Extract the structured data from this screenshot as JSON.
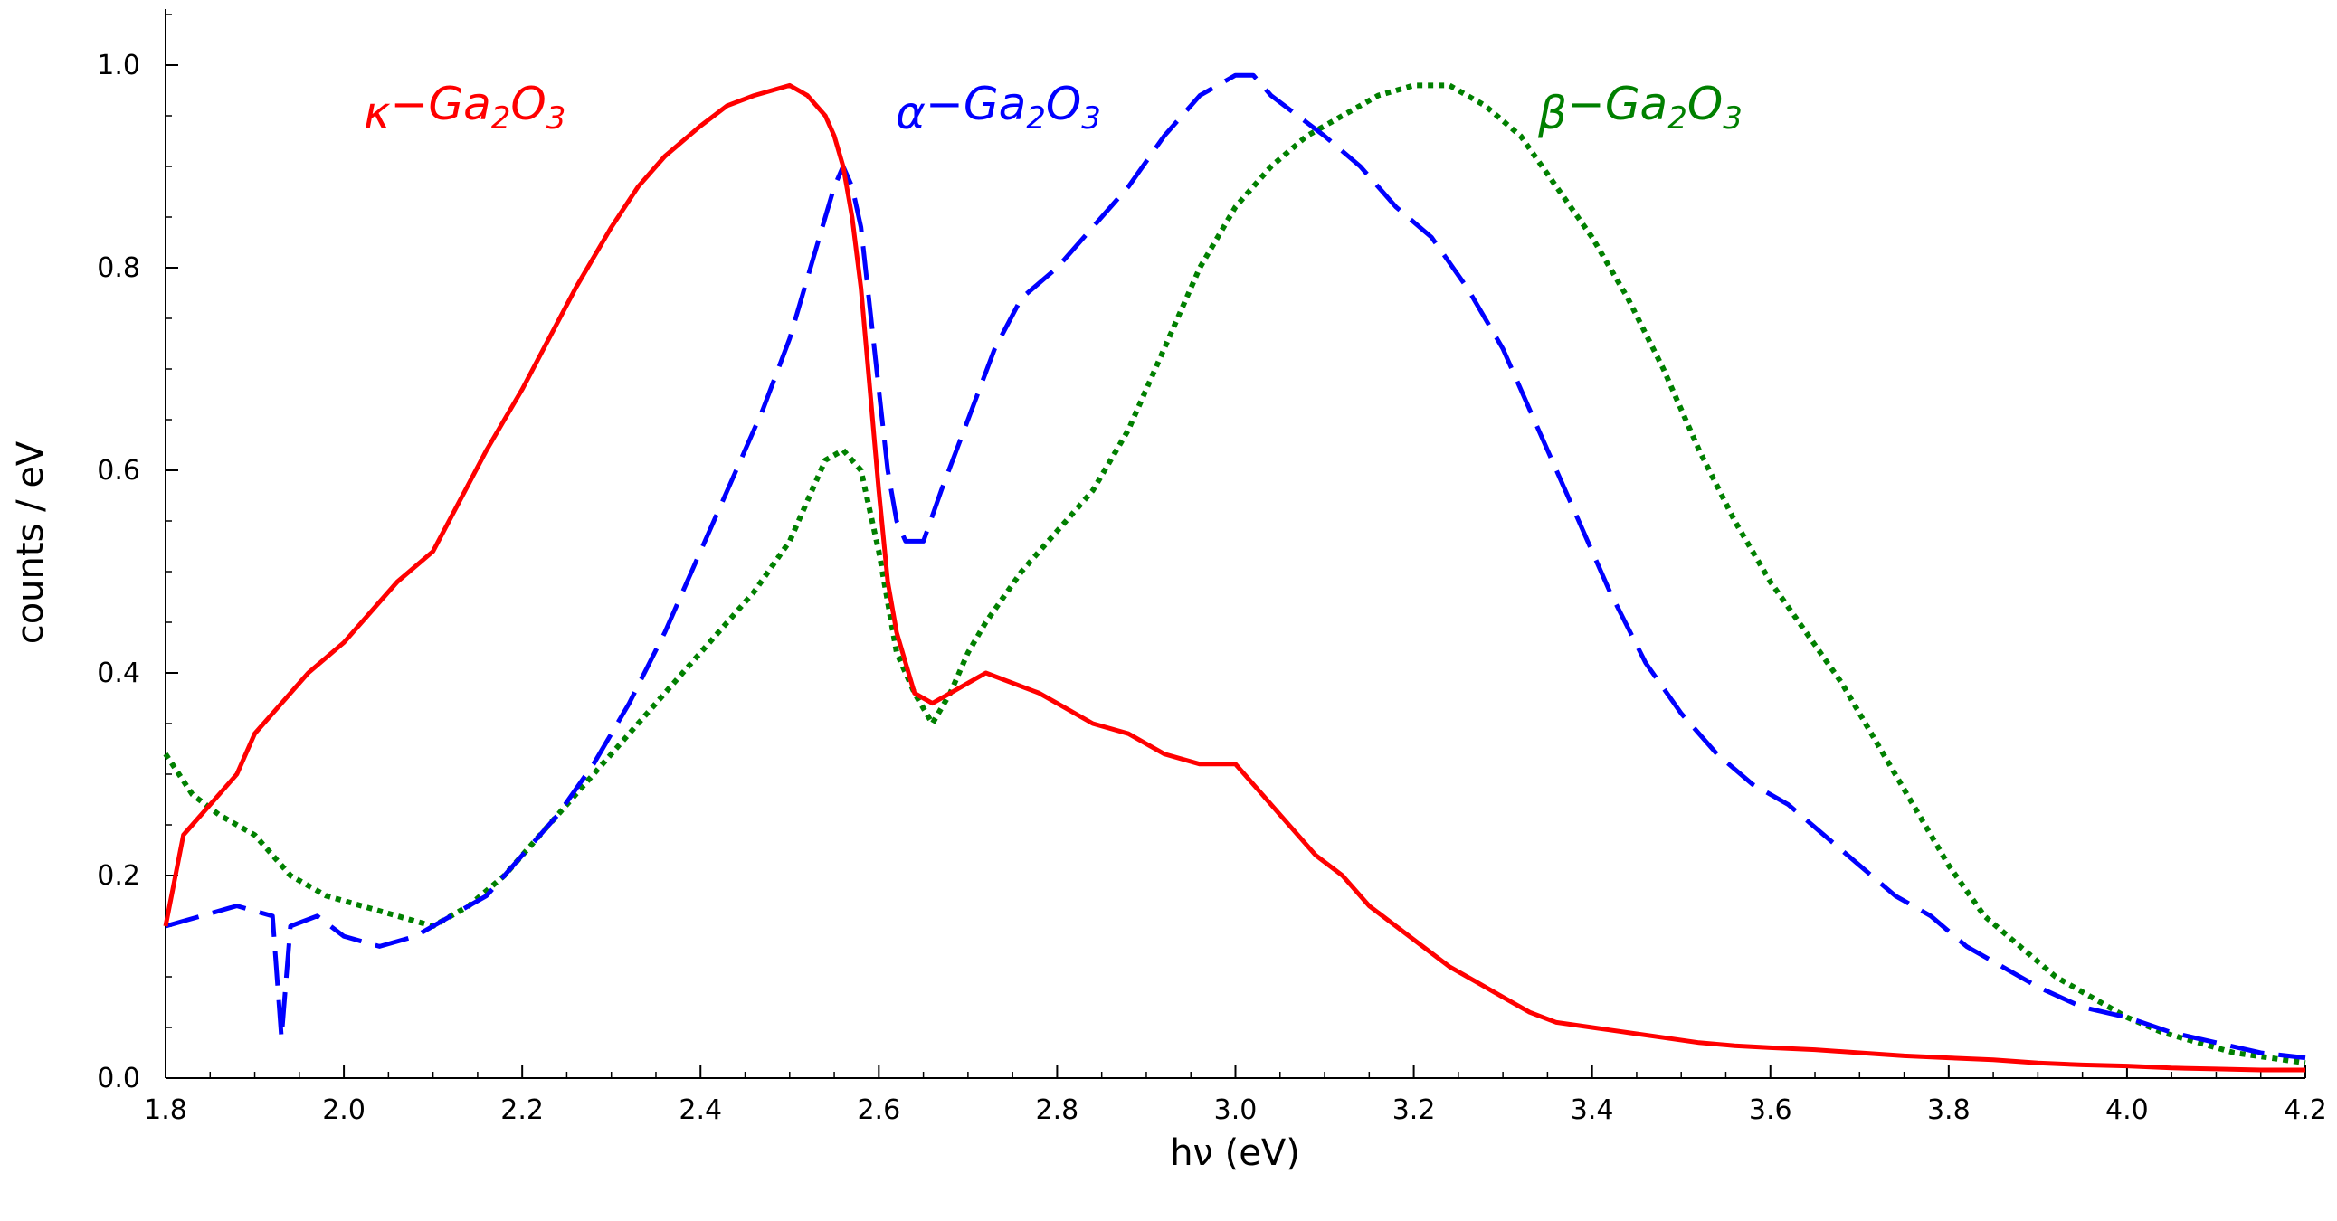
{
  "chart_data": {
    "type": "line",
    "xlabel": "hν (eV)",
    "ylabel": "counts / eV",
    "xlim": [
      1.8,
      4.2
    ],
    "ylim": [
      0.0,
      1.05
    ],
    "grid": false,
    "xticks": [
      "1.8",
      "2.0",
      "2.2",
      "2.4",
      "2.6",
      "2.8",
      "3.0",
      "3.2",
      "3.4",
      "3.6",
      "3.8",
      "4.0",
      "4.2"
    ],
    "yticks": [
      "0.0",
      "0.2",
      "0.4",
      "0.6",
      "0.8",
      "1.0"
    ],
    "series": [
      {
        "name": "κ−Ga2O3",
        "color": "#ff0000",
        "style": "solid",
        "label_parts": {
          "greek": "κ",
          "base": "−Ga",
          "sub1": "2",
          "mid": "O",
          "sub2": "3"
        },
        "x": [
          1.8,
          1.82,
          1.85,
          1.88,
          1.9,
          1.93,
          1.96,
          2.0,
          2.03,
          2.06,
          2.1,
          2.13,
          2.16,
          2.2,
          2.23,
          2.26,
          2.3,
          2.33,
          2.36,
          2.4,
          2.43,
          2.46,
          2.5,
          2.52,
          2.54,
          2.55,
          2.56,
          2.57,
          2.58,
          2.59,
          2.6,
          2.61,
          2.62,
          2.63,
          2.64,
          2.66,
          2.68,
          2.7,
          2.72,
          2.75,
          2.78,
          2.8,
          2.84,
          2.88,
          2.92,
          2.96,
          3.0,
          3.03,
          3.06,
          3.09,
          3.12,
          3.15,
          3.18,
          3.21,
          3.24,
          3.27,
          3.3,
          3.33,
          3.36,
          3.4,
          3.44,
          3.48,
          3.52,
          3.56,
          3.6,
          3.65,
          3.7,
          3.75,
          3.8,
          3.85,
          3.9,
          3.95,
          4.0,
          4.05,
          4.1,
          4.15,
          4.2
        ],
        "y": [
          0.15,
          0.24,
          0.27,
          0.3,
          0.34,
          0.37,
          0.4,
          0.43,
          0.46,
          0.49,
          0.52,
          0.57,
          0.62,
          0.68,
          0.73,
          0.78,
          0.84,
          0.88,
          0.91,
          0.94,
          0.96,
          0.97,
          0.98,
          0.97,
          0.95,
          0.93,
          0.9,
          0.85,
          0.78,
          0.68,
          0.58,
          0.49,
          0.44,
          0.41,
          0.38,
          0.37,
          0.38,
          0.39,
          0.4,
          0.39,
          0.38,
          0.37,
          0.35,
          0.34,
          0.32,
          0.31,
          0.31,
          0.28,
          0.25,
          0.22,
          0.2,
          0.17,
          0.15,
          0.13,
          0.11,
          0.095,
          0.08,
          0.065,
          0.055,
          0.05,
          0.045,
          0.04,
          0.035,
          0.032,
          0.03,
          0.028,
          0.025,
          0.022,
          0.02,
          0.018,
          0.015,
          0.013,
          0.012,
          0.01,
          0.009,
          0.008,
          0.008
        ]
      },
      {
        "name": "α−Ga2O3",
        "color": "#0000ff",
        "style": "dashed",
        "label_parts": {
          "greek": "α",
          "base": "−Ga",
          "sub1": "2",
          "mid": "O",
          "sub2": "3"
        },
        "x": [
          1.8,
          1.84,
          1.88,
          1.92,
          1.93,
          1.94,
          1.97,
          2.0,
          2.04,
          2.08,
          2.12,
          2.16,
          2.2,
          2.24,
          2.28,
          2.32,
          2.36,
          2.4,
          2.44,
          2.47,
          2.5,
          2.52,
          2.54,
          2.55,
          2.56,
          2.57,
          2.58,
          2.59,
          2.6,
          2.61,
          2.62,
          2.63,
          2.65,
          2.67,
          2.7,
          2.73,
          2.76,
          2.8,
          2.84,
          2.88,
          2.92,
          2.96,
          3.0,
          3.02,
          3.04,
          3.07,
          3.1,
          3.14,
          3.18,
          3.22,
          3.26,
          3.3,
          3.34,
          3.38,
          3.42,
          3.46,
          3.5,
          3.54,
          3.58,
          3.62,
          3.66,
          3.7,
          3.74,
          3.78,
          3.82,
          3.86,
          3.9,
          3.95,
          4.0,
          4.05,
          4.1,
          4.15,
          4.2
        ],
        "y": [
          0.15,
          0.16,
          0.17,
          0.16,
          0.04,
          0.15,
          0.16,
          0.14,
          0.13,
          0.14,
          0.16,
          0.18,
          0.22,
          0.26,
          0.31,
          0.37,
          0.44,
          0.52,
          0.6,
          0.66,
          0.73,
          0.79,
          0.85,
          0.88,
          0.9,
          0.88,
          0.84,
          0.76,
          0.68,
          0.6,
          0.55,
          0.53,
          0.53,
          0.58,
          0.65,
          0.72,
          0.77,
          0.8,
          0.84,
          0.88,
          0.93,
          0.97,
          0.99,
          0.99,
          0.97,
          0.95,
          0.93,
          0.9,
          0.86,
          0.83,
          0.78,
          0.72,
          0.64,
          0.56,
          0.48,
          0.41,
          0.36,
          0.32,
          0.29,
          0.27,
          0.24,
          0.21,
          0.18,
          0.16,
          0.13,
          0.11,
          0.09,
          0.07,
          0.06,
          0.045,
          0.035,
          0.025,
          0.02
        ]
      },
      {
        "name": "β−Ga2O3",
        "color": "#008000",
        "style": "dotted",
        "label_parts": {
          "greek": "β",
          "base": "−Ga",
          "sub1": "2",
          "mid": "O",
          "sub2": "3"
        },
        "x": [
          1.8,
          1.83,
          1.86,
          1.9,
          1.94,
          1.98,
          2.02,
          2.06,
          2.1,
          2.14,
          2.18,
          2.22,
          2.26,
          2.3,
          2.34,
          2.38,
          2.42,
          2.46,
          2.5,
          2.52,
          2.54,
          2.56,
          2.58,
          2.6,
          2.62,
          2.64,
          2.66,
          2.68,
          2.7,
          2.72,
          2.76,
          2.8,
          2.84,
          2.88,
          2.92,
          2.96,
          3.0,
          3.04,
          3.08,
          3.12,
          3.16,
          3.2,
          3.24,
          3.28,
          3.32,
          3.36,
          3.4,
          3.44,
          3.48,
          3.52,
          3.56,
          3.6,
          3.64,
          3.68,
          3.72,
          3.76,
          3.8,
          3.84,
          3.88,
          3.92,
          3.96,
          4.0,
          4.04,
          4.08,
          4.12,
          4.16,
          4.2
        ],
        "y": [
          0.32,
          0.28,
          0.26,
          0.24,
          0.2,
          0.18,
          0.17,
          0.16,
          0.15,
          0.17,
          0.2,
          0.24,
          0.28,
          0.32,
          0.36,
          0.4,
          0.44,
          0.48,
          0.53,
          0.57,
          0.61,
          0.62,
          0.6,
          0.52,
          0.42,
          0.38,
          0.35,
          0.38,
          0.42,
          0.45,
          0.5,
          0.54,
          0.58,
          0.64,
          0.72,
          0.8,
          0.86,
          0.9,
          0.93,
          0.95,
          0.97,
          0.98,
          0.98,
          0.96,
          0.93,
          0.88,
          0.83,
          0.77,
          0.7,
          0.62,
          0.55,
          0.49,
          0.44,
          0.39,
          0.33,
          0.27,
          0.21,
          0.16,
          0.13,
          0.1,
          0.08,
          0.06,
          0.045,
          0.035,
          0.025,
          0.02,
          0.015
        ]
      }
    ]
  }
}
